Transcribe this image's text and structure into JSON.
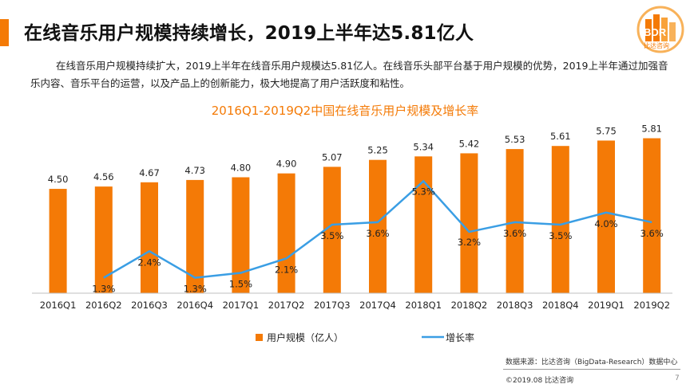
{
  "page": {
    "title": "在线音乐用户规模持续增长，2019上半年达5.81亿人",
    "body": "在线音乐用户规模持续扩大，2019上半年在线音乐用户规模达5.81亿人。在线音乐头部平台基于用户规模的优势，2019上半年通过加强音乐内容、音乐平台的运营，以及产品上的创新能力，极大地提高了用户活跃度和粘性。",
    "logo_text": "BDR",
    "logo_sub": "比达咨询",
    "source": "数据来源：比达咨询（BigData-Research）数据中心",
    "copyright": "©2019.08  比达咨询",
    "page_number": "7"
  },
  "colors": {
    "bar": "#f47a06",
    "line": "#3a9ee4",
    "title": "#f47a06"
  },
  "chart_data": {
    "type": "bar",
    "title": "2016Q1-2019Q2中国在线音乐用户规模及增长率",
    "categories": [
      "2016Q1",
      "2016Q2",
      "2016Q3",
      "2016Q4",
      "2017Q1",
      "2017Q2",
      "2017Q3",
      "2017Q4",
      "2018Q1",
      "2018Q2",
      "2018Q3",
      "2018Q4",
      "2019Q1",
      "2019Q2"
    ],
    "series": [
      {
        "name": "用户规模（亿人）",
        "type": "bar",
        "values": [
          4.5,
          4.56,
          4.67,
          4.73,
          4.8,
          4.9,
          5.07,
          5.25,
          5.34,
          5.42,
          5.53,
          5.61,
          5.75,
          5.81
        ],
        "labels": [
          "4.50",
          "4.56",
          "4.67",
          "4.73",
          "4.80",
          "4.90",
          "5.07",
          "5.25",
          "5.34",
          "5.42",
          "5.53",
          "5.61",
          "5.75",
          "5.81"
        ]
      },
      {
        "name": "增长率",
        "type": "line",
        "values": [
          null,
          1.3,
          2.4,
          1.3,
          1.5,
          2.1,
          3.5,
          3.6,
          5.3,
          3.2,
          3.6,
          3.5,
          4.0,
          3.6
        ],
        "labels": [
          "",
          "1.3%",
          "2.4%",
          "1.3%",
          "1.5%",
          "2.1%",
          "3.5%",
          "3.6%",
          "5.3%",
          "3.2%",
          "3.6%",
          "3.5%",
          "4.0%",
          "3.6%"
        ]
      }
    ],
    "legend_position": "bottom",
    "grid": false
  }
}
